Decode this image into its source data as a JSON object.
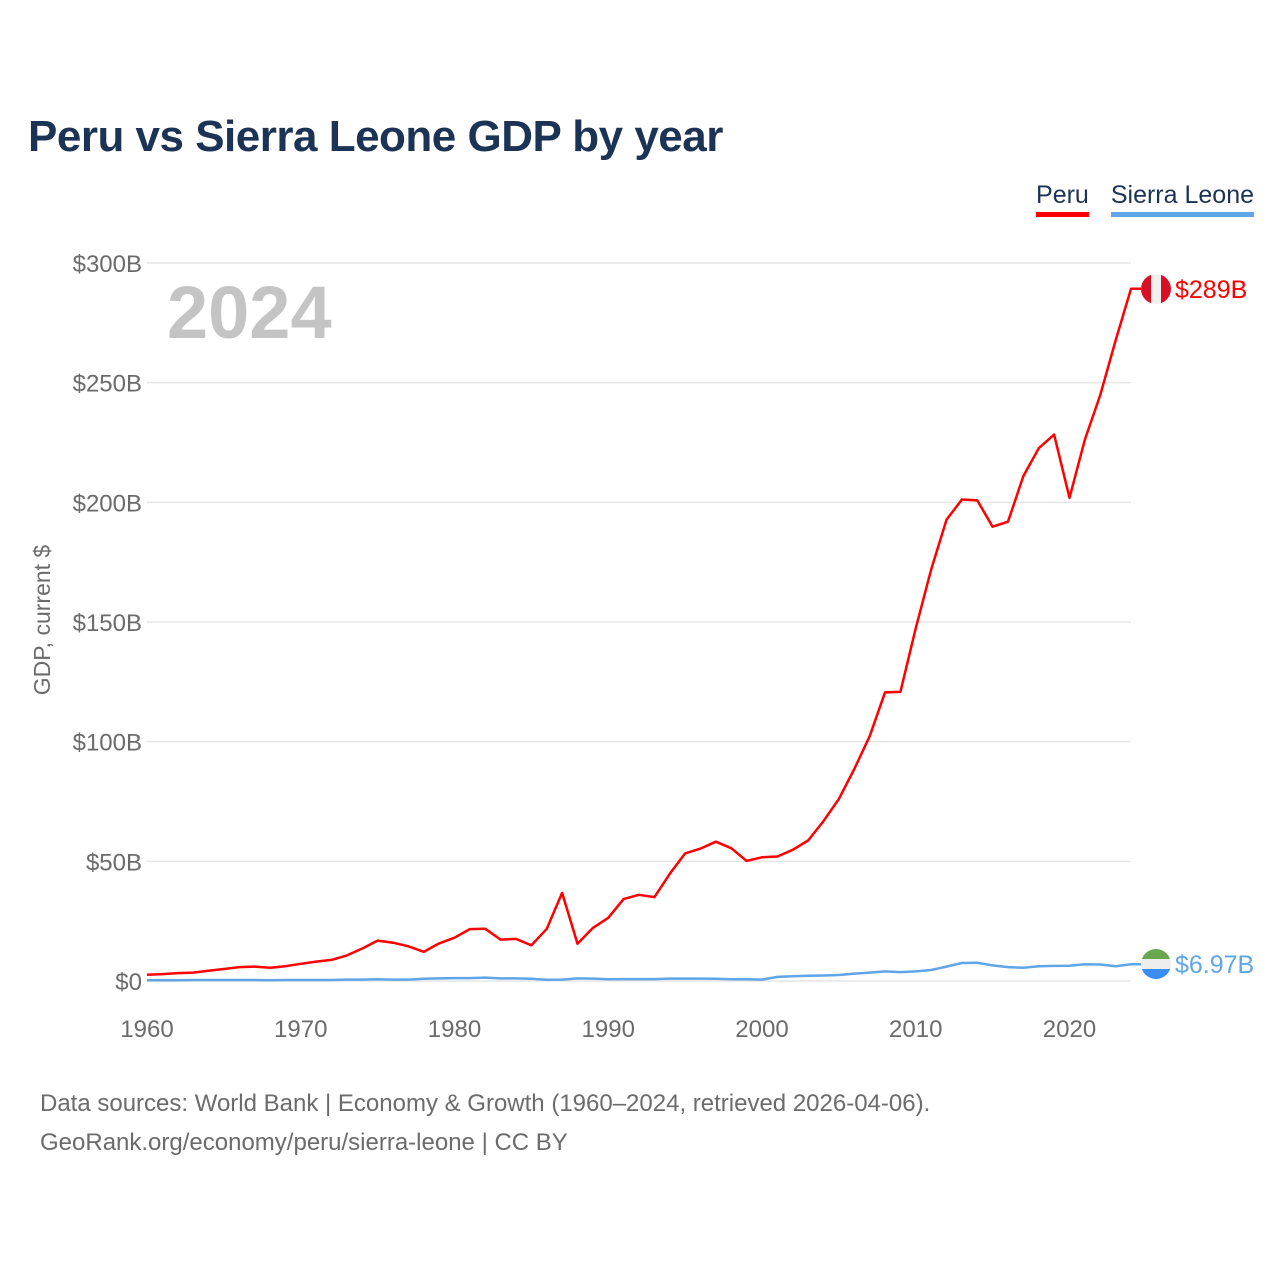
{
  "title": "Peru vs Sierra Leone GDP by year",
  "legend": [
    "Peru",
    "Sierra Leone"
  ],
  "year_watermark": "2024",
  "footer": {
    "line1": "Data sources: World Bank | Economy & Growth (1960–2024, retrieved 2026-04-06).",
    "line2": "GeoRank.org/economy/peru/sierra-leone | CC BY"
  },
  "chart_data": {
    "type": "line",
    "title": "Peru vs Sierra Leone GDP by year",
    "xlabel": "",
    "ylabel": "GDP, current $",
    "xlim": [
      1960,
      2024
    ],
    "ylim": [
      0,
      300
    ],
    "units": "billions USD",
    "grid": true,
    "legend_placement": "top-right",
    "x_ticks": [
      1960,
      1970,
      1980,
      1990,
      2000,
      2010,
      2020
    ],
    "x_tick_labels": [
      "1960",
      "1970",
      "1980",
      "1990",
      "2000",
      "2010",
      "2020"
    ],
    "y_ticks": [
      0,
      50,
      100,
      150,
      200,
      250,
      300
    ],
    "y_tick_labels": [
      "$0",
      "$50B",
      "$100B",
      "$150B",
      "$200B",
      "$250B",
      "$300B"
    ],
    "x": [
      1960,
      1961,
      1962,
      1963,
      1964,
      1965,
      1966,
      1967,
      1968,
      1969,
      1970,
      1971,
      1972,
      1973,
      1974,
      1975,
      1976,
      1977,
      1978,
      1979,
      1980,
      1981,
      1982,
      1983,
      1984,
      1985,
      1986,
      1987,
      1988,
      1989,
      1990,
      1991,
      1992,
      1993,
      1994,
      1995,
      1996,
      1997,
      1998,
      1999,
      2000,
      2001,
      2002,
      2003,
      2004,
      2005,
      2006,
      2007,
      2008,
      2009,
      2010,
      2011,
      2012,
      2013,
      2014,
      2015,
      2016,
      2017,
      2018,
      2019,
      2020,
      2021,
      2022,
      2023,
      2024
    ],
    "series": [
      {
        "name": "Peru",
        "color": "#ff0000",
        "end_label": "$289B",
        "values": [
          2.6,
          2.9,
          3.3,
          3.5,
          4.3,
          5.0,
          5.8,
          6.0,
          5.5,
          6.2,
          7.2,
          8.1,
          8.8,
          10.7,
          13.6,
          16.9,
          16.0,
          14.5,
          12.2,
          15.7,
          18.1,
          21.7,
          21.8,
          17.3,
          17.6,
          14.9,
          21.8,
          36.8,
          15.6,
          22.2,
          26.4,
          34.2,
          36.0,
          35.0,
          44.8,
          53.3,
          55.3,
          58.2,
          55.5,
          50.2,
          51.7,
          52.0,
          54.8,
          58.7,
          66.8,
          76.1,
          88.6,
          102.2,
          120.6,
          120.8,
          147.5,
          171.8,
          192.7,
          201.2,
          200.8,
          189.8,
          191.9,
          211.0,
          222.6,
          228.3,
          201.9,
          226.2,
          244.9,
          267.6,
          289.2
        ]
      },
      {
        "name": "Sierra Leone",
        "color": "#60a5e8",
        "end_label": "$6.97B",
        "values": [
          0.3,
          0.3,
          0.3,
          0.4,
          0.4,
          0.4,
          0.4,
          0.4,
          0.3,
          0.4,
          0.4,
          0.4,
          0.4,
          0.6,
          0.6,
          0.7,
          0.6,
          0.6,
          0.9,
          1.1,
          1.2,
          1.2,
          1.4,
          1.1,
          1.1,
          0.9,
          0.5,
          0.6,
          1.1,
          1.0,
          0.7,
          0.8,
          0.8,
          0.8,
          1.0,
          1.0,
          1.0,
          0.9,
          0.7,
          0.7,
          0.6,
          1.7,
          2.0,
          2.2,
          2.3,
          2.5,
          3.1,
          3.5,
          4.0,
          3.7,
          4.0,
          4.6,
          6.0,
          7.5,
          7.6,
          6.5,
          5.8,
          5.5,
          6.2,
          6.3,
          6.4,
          7.0,
          6.9,
          6.2,
          6.97
        ]
      }
    ]
  }
}
